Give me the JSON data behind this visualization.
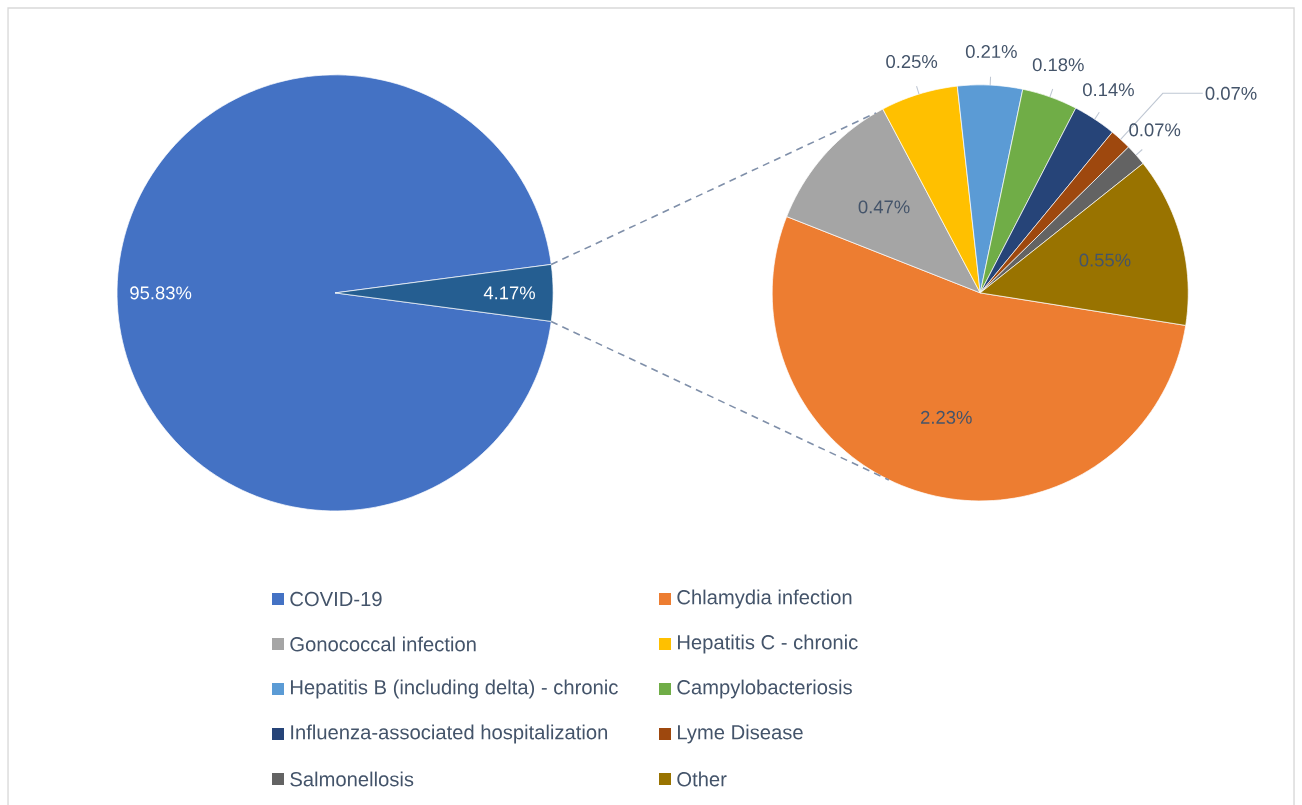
{
  "chart_data": [
    {
      "type": "pie",
      "categories": [
        "COVID-19",
        null
      ],
      "values": [
        95.83,
        4.17
      ],
      "value_labels": [
        "95.83%",
        "4.17%"
      ],
      "colors": [
        "#4472c4",
        "#255e91"
      ],
      "legend": "bottom"
    },
    {
      "type": "pie",
      "categories": [
        "Chlamydia infection",
        "Gonococcal infection",
        "Hepatitis C - chronic",
        "Hepatitis B (including delta) - chronic",
        "Campylobacteriosis",
        "Influenza-associated hospitalization",
        "Lyme Disease",
        "Salmonellosis",
        "Other"
      ],
      "values": [
        2.23,
        0.47,
        0.25,
        0.21,
        0.18,
        0.14,
        0.07,
        0.07,
        0.55
      ],
      "value_labels": [
        "2.23%",
        "0.47%",
        "0.25%",
        "0.21%",
        "0.18%",
        "0.14%",
        "0.07%",
        "0.07%",
        "0.55%"
      ],
      "colors": [
        "#ed7d31",
        "#a5a5a5",
        "#ffc000",
        "#5b9bd5",
        "#70ad47",
        "#264478",
        "#9e480e",
        "#636363",
        "#997300"
      ],
      "legend": "bottom"
    }
  ]
}
